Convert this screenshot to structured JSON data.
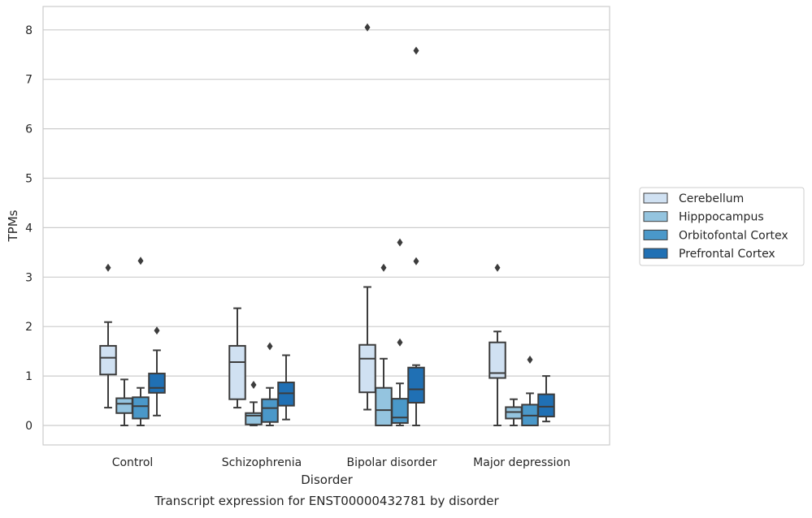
{
  "chart_data": {
    "type": "box",
    "caption": "Transcript expression for ENST00000432781 by disorder",
    "xlabel": "Disorder",
    "ylabel": "TPMs",
    "categories": [
      "Control",
      "Schizophrenia",
      "Bipolar disorder",
      "Major depression"
    ],
    "yticks": [
      0,
      1,
      2,
      3,
      4,
      5,
      6,
      7,
      8
    ],
    "ylim": [
      -0.4,
      8.45
    ],
    "grid": "horizontal",
    "legend_position": "right",
    "series": [
      {
        "name": "Cerebellum",
        "color": "#d0e1f2",
        "boxes": [
          {
            "whislo": 0.36,
            "q1": 1.03,
            "med": 1.37,
            "q3": 1.61,
            "whishi": 2.09,
            "fliers": [
              3.19
            ]
          },
          {
            "whislo": 0.36,
            "q1": 0.53,
            "med": 1.28,
            "q3": 1.61,
            "whishi": 2.37,
            "fliers": []
          },
          {
            "whislo": 0.32,
            "q1": 0.67,
            "med": 1.35,
            "q3": 1.63,
            "whishi": 2.8,
            "fliers": [
              8.05
            ]
          },
          {
            "whislo": 0.0,
            "q1": 0.96,
            "med": 1.06,
            "q3": 1.68,
            "whishi": 1.9,
            "fliers": [
              3.19
            ]
          }
        ]
      },
      {
        "name": "Hipppocampus",
        "color": "#94c4df",
        "boxes": [
          {
            "whislo": 0.0,
            "q1": 0.25,
            "med": 0.44,
            "q3": 0.55,
            "whishi": 0.93,
            "fliers": []
          },
          {
            "whislo": 0.0,
            "q1": 0.02,
            "med": 0.2,
            "q3": 0.25,
            "whishi": 0.47,
            "fliers": [
              0.82
            ]
          },
          {
            "whislo": 0.0,
            "q1": 0.0,
            "med": 0.31,
            "q3": 0.76,
            "whishi": 1.35,
            "fliers": [
              3.19
            ]
          },
          {
            "whislo": 0.0,
            "q1": 0.14,
            "med": 0.27,
            "q3": 0.37,
            "whishi": 0.53,
            "fliers": []
          }
        ]
      },
      {
        "name": "Orbitofontal Cortex",
        "color": "#4a98c9",
        "boxes": [
          {
            "whislo": 0.0,
            "q1": 0.14,
            "med": 0.39,
            "q3": 0.57,
            "whishi": 0.76,
            "fliers": [
              3.33
            ]
          },
          {
            "whislo": 0.0,
            "q1": 0.07,
            "med": 0.35,
            "q3": 0.53,
            "whishi": 0.76,
            "fliers": [
              1.6
            ]
          },
          {
            "whislo": 0.0,
            "q1": 0.05,
            "med": 0.16,
            "q3": 0.54,
            "whishi": 0.85,
            "fliers": [
              1.68,
              3.7
            ]
          },
          {
            "whislo": 0.0,
            "q1": 0.0,
            "med": 0.2,
            "q3": 0.42,
            "whishi": 0.65,
            "fliers": [
              1.33
            ]
          }
        ]
      },
      {
        "name": "Prefrontal Cortex",
        "color": "#2070b4",
        "boxes": [
          {
            "whislo": 0.2,
            "q1": 0.66,
            "med": 0.76,
            "q3": 1.05,
            "whishi": 1.52,
            "fliers": [
              1.92
            ]
          },
          {
            "whislo": 0.12,
            "q1": 0.4,
            "med": 0.65,
            "q3": 0.87,
            "whishi": 1.42,
            "fliers": []
          },
          {
            "whislo": 0.0,
            "q1": 0.46,
            "med": 0.73,
            "q3": 1.17,
            "whishi": 1.22,
            "fliers": [
              3.32,
              7.58
            ]
          },
          {
            "whislo": 0.08,
            "q1": 0.18,
            "med": 0.38,
            "q3": 0.63,
            "whishi": 1.0,
            "fliers": []
          }
        ]
      }
    ]
  }
}
